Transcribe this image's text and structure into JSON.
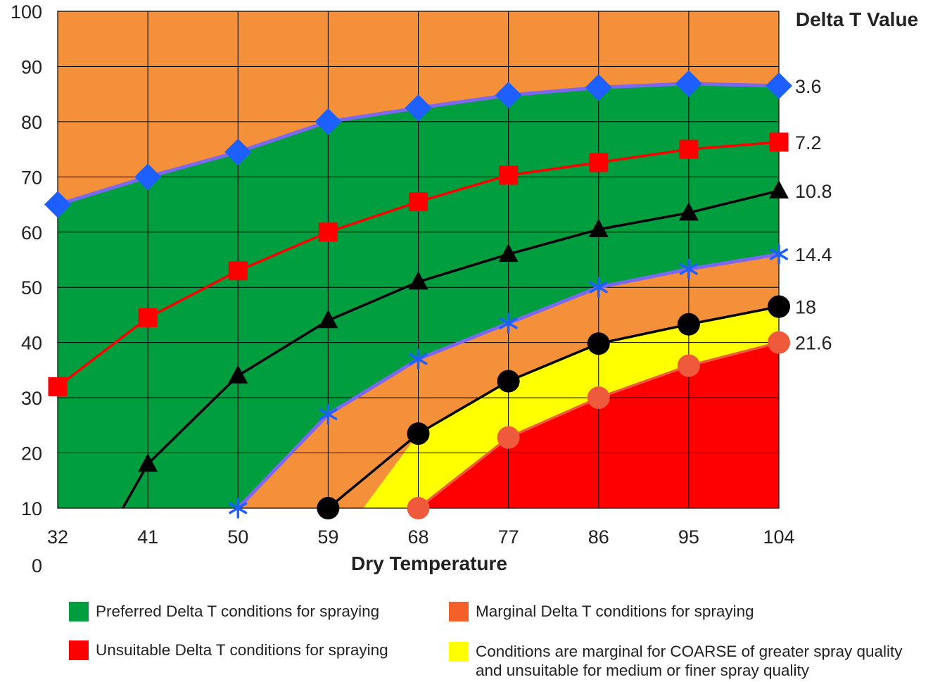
{
  "chart_data": {
    "type": "line",
    "title": "",
    "xlabel": "Dry Temperature",
    "ylabel": "",
    "legend_title": "Delta T Value",
    "x": [
      32,
      41,
      50,
      59,
      68,
      77,
      86,
      95,
      104
    ],
    "xticks": [
      "32",
      "41",
      "50",
      "59",
      "68",
      "77",
      "86",
      "95",
      "104"
    ],
    "yticks": [
      "0",
      "10",
      "20",
      "30",
      "40",
      "50",
      "60",
      "70",
      "80",
      "90",
      "100"
    ],
    "xlim": [
      32,
      104
    ],
    "ylim": [
      10,
      100
    ],
    "grid": true,
    "series": [
      {
        "name": "3.6",
        "color": "#7B68EE",
        "marker_color": "#1E5FFF",
        "marker": "diamond",
        "points": [
          [
            32,
            65
          ],
          [
            41,
            70
          ],
          [
            50,
            74.5
          ],
          [
            59,
            80
          ],
          [
            68,
            82.5
          ],
          [
            77,
            84.8
          ],
          [
            86,
            86.2
          ],
          [
            95,
            86.9
          ],
          [
            104,
            86.5
          ]
        ]
      },
      {
        "name": "7.2",
        "color": "#FF0000",
        "marker_color": "#FF0000",
        "marker": "square",
        "points": [
          [
            32,
            32
          ],
          [
            41,
            44.5
          ],
          [
            50,
            53
          ],
          [
            59,
            60
          ],
          [
            68,
            65.5
          ],
          [
            77,
            70.3
          ],
          [
            86,
            72.6
          ],
          [
            95,
            75
          ],
          [
            104,
            76.3
          ]
        ]
      },
      {
        "name": "10.8",
        "color": "#000000",
        "marker_color": "#000000",
        "marker": "triangle",
        "points": [
          [
            38.5,
            10
          ],
          [
            41,
            18
          ],
          [
            50,
            34
          ],
          [
            59,
            44
          ],
          [
            68,
            51
          ],
          [
            77,
            56
          ],
          [
            86,
            60.5
          ],
          [
            95,
            63.5
          ],
          [
            104,
            67.5
          ]
        ]
      },
      {
        "name": "14.4",
        "color": "#7B68EE",
        "marker_color": "#1E5FFF",
        "marker": "star",
        "points": [
          [
            50,
            10
          ],
          [
            59,
            27
          ],
          [
            68,
            37
          ],
          [
            77,
            43.5
          ],
          [
            86,
            50
          ],
          [
            95,
            53.3
          ],
          [
            104,
            56
          ]
        ]
      },
      {
        "name": "18",
        "color": "#000000",
        "marker_color": "#000000",
        "marker": "circle",
        "points": [
          [
            59,
            10
          ],
          [
            68,
            23.5
          ],
          [
            77,
            33
          ],
          [
            86,
            39.8
          ],
          [
            95,
            43.3
          ],
          [
            104,
            46.5
          ]
        ]
      },
      {
        "name": "21.6",
        "color": "#F05A3C",
        "marker_color": "#F05A3C",
        "marker": "circle",
        "points": [
          [
            68,
            10
          ],
          [
            77,
            22.8
          ],
          [
            86,
            30
          ],
          [
            95,
            35.8
          ],
          [
            104,
            40
          ]
        ]
      }
    ],
    "regions": [
      {
        "name": "Preferred Delta T conditions for spraying",
        "color": "#009E3F"
      },
      {
        "name": "Marginal Delta T conditions for spraying",
        "color": "#F5903A",
        "swatch_color": "#F55F2A"
      },
      {
        "name": "Unsuitable Delta T conditions for spraying",
        "color": "#FF0000"
      },
      {
        "name": "Conditions are marginal for COARSE of greater spray quality and unsuitable for medium or finer spray quality",
        "color": "#FFFF00"
      }
    ]
  }
}
